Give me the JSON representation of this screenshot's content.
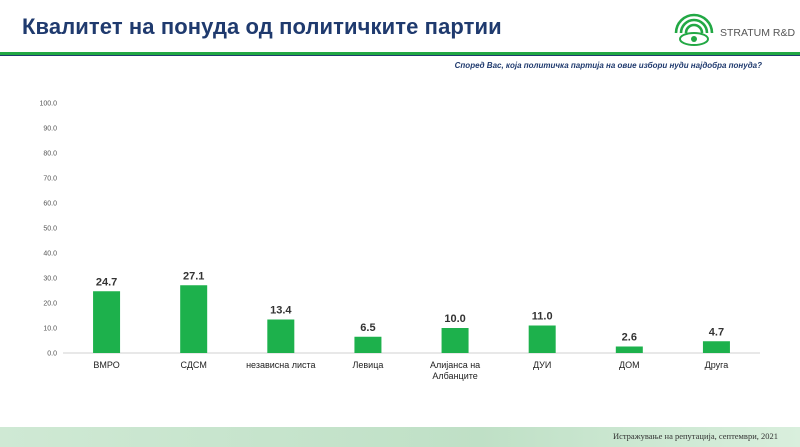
{
  "header": {
    "title": "Квалитет на понуда од политичките партии",
    "logo_text": "STRATUM R&D"
  },
  "question": "Според Вас, која политичка партија на овие избори нуди најдобра понуда?",
  "footer": {
    "source": "Истражување на репутација, септември, 2021"
  },
  "colors": {
    "bar": "#1db14c",
    "title": "#1f3a6e",
    "accent_green": "#22a844"
  },
  "chart_data": {
    "type": "bar",
    "categories": [
      [
        "ВМРО"
      ],
      [
        "СДСМ"
      ],
      [
        "независна листа"
      ],
      [
        "Левица"
      ],
      [
        "Алијанса на",
        "Албанците"
      ],
      [
        "ДУИ"
      ],
      [
        "ДОМ"
      ],
      [
        "Друга"
      ]
    ],
    "values": [
      24.7,
      27.1,
      13.4,
      6.5,
      10.0,
      11.0,
      2.6,
      4.7
    ],
    "value_labels": [
      "24.7",
      "27.1",
      "13.4",
      "6.5",
      "10.0",
      "11.0",
      "2.6",
      "4.7"
    ],
    "y_ticks": [
      "0.0",
      "10.0",
      "20.0",
      "30.0",
      "40.0",
      "50.0",
      "60.0",
      "70.0",
      "80.0",
      "90.0",
      "100.0"
    ],
    "ylim": [
      0,
      100
    ],
    "grid": false,
    "legend": "none"
  }
}
